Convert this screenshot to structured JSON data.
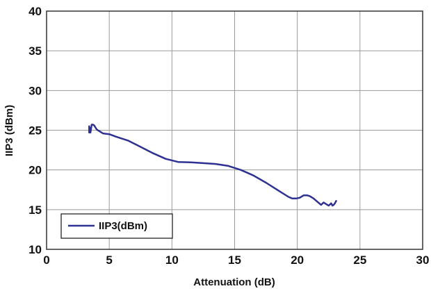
{
  "chart_data": {
    "type": "line",
    "title": "",
    "xlabel": "Attenuation (dB)",
    "ylabel": "IIP3 (dBm)",
    "xlim": [
      0,
      30
    ],
    "ylim": [
      10,
      40
    ],
    "x_ticks": [
      "0",
      "5",
      "10",
      "15",
      "20",
      "25",
      "30"
    ],
    "y_ticks": [
      "10",
      "15",
      "20",
      "25",
      "30",
      "35",
      "40"
    ],
    "grid": true,
    "legend_position": "bottom-left",
    "series": [
      {
        "name": "IIP3(dBm)",
        "color": "#2e3192",
        "x": [
          3.4,
          3.4,
          3.5,
          3.5,
          3.6,
          3.7,
          3.8,
          4.0,
          4.5,
          5.0,
          5.5,
          6.5,
          7.5,
          8.5,
          9.5,
          10.5,
          11.5,
          12.5,
          13.5,
          14.5,
          15.5,
          16.5,
          17.5,
          18.5,
          19.3,
          19.6,
          19.9,
          20.2,
          20.5,
          20.8,
          21.0,
          21.3,
          21.6,
          21.9,
          22.1,
          22.3,
          22.5,
          22.7,
          22.8,
          22.9,
          23.0,
          23.1
        ],
        "y": [
          25.5,
          24.7,
          25.3,
          24.7,
          25.7,
          25.7,
          25.6,
          25.1,
          24.6,
          24.5,
          24.2,
          23.7,
          22.9,
          22.1,
          21.4,
          21.0,
          20.95,
          20.85,
          20.75,
          20.5,
          20.0,
          19.3,
          18.4,
          17.4,
          16.6,
          16.4,
          16.4,
          16.5,
          16.8,
          16.8,
          16.7,
          16.4,
          16.0,
          15.6,
          15.9,
          15.7,
          15.5,
          15.8,
          15.5,
          15.6,
          15.8,
          16.1
        ]
      }
    ]
  }
}
